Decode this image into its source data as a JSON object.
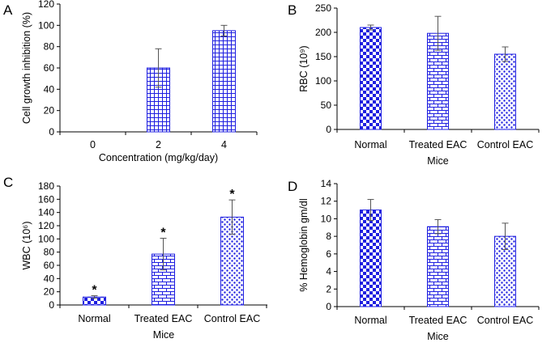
{
  "chart_data": [
    {
      "panel": "A",
      "type": "bar",
      "categories": [
        "0",
        "2",
        "4"
      ],
      "values": [
        0,
        60,
        95
      ],
      "errors": [
        0,
        18,
        5
      ],
      "patterns": [
        "grid",
        "grid",
        "grid"
      ],
      "ylabel": "Cell growth inhibition (%)",
      "xlabel": "Concentration (mg/kg/day)",
      "ylim": [
        0,
        120
      ],
      "yticks": [
        0,
        20,
        40,
        60,
        80,
        100,
        120
      ],
      "ytick_labels": [
        "0",
        "20",
        "40",
        "60",
        "80",
        "100",
        "120"
      ],
      "markers": [
        "",
        "",
        ""
      ]
    },
    {
      "panel": "B",
      "type": "bar",
      "categories": [
        "Normal",
        "Treated EAC",
        "Control EAC"
      ],
      "values": [
        210,
        198,
        155
      ],
      "errors": [
        5,
        35,
        15
      ],
      "patterns": [
        "checker",
        "brick",
        "dots"
      ],
      "ylabel": "RBC (10⁹)",
      "xlabel": "Mice",
      "ylim": [
        0,
        250
      ],
      "yticks": [
        0,
        50,
        100,
        150,
        200,
        250
      ],
      "ytick_labels": [
        "0",
        "50",
        "100",
        "150",
        "200",
        "250"
      ],
      "markers": [
        "",
        "",
        ""
      ]
    },
    {
      "panel": "C",
      "type": "bar",
      "categories": [
        "Normal",
        "Treated EAC",
        "Control EAC"
      ],
      "values": [
        12,
        77,
        133
      ],
      "errors": [
        2,
        24,
        26
      ],
      "patterns": [
        "checker",
        "brick",
        "dots"
      ],
      "ylabel": "WBC (10⁶)",
      "xlabel": "Mice",
      "ylim": [
        0,
        180
      ],
      "yticks": [
        0,
        20,
        40,
        60,
        80,
        100,
        120,
        140,
        160,
        180
      ],
      "ytick_labels": [
        "0",
        "20",
        "40",
        "60",
        "80",
        "100",
        "120",
        "140",
        "160",
        "180"
      ],
      "markers": [
        "*",
        "*",
        "*"
      ]
    },
    {
      "panel": "D",
      "type": "bar",
      "categories": [
        "Normal",
        "Treated EAC",
        "Control EAC"
      ],
      "values": [
        11,
        9.1,
        8
      ],
      "errors": [
        1.2,
        0.8,
        1.5
      ],
      "patterns": [
        "checker",
        "brick",
        "dots"
      ],
      "ylabel": "% Hemoglobin gm/dl",
      "xlabel": "Mice",
      "ylim": [
        0,
        14
      ],
      "yticks": [
        0,
        2,
        4,
        6,
        8,
        10,
        12,
        14
      ],
      "ytick_labels": [
        "0",
        "2",
        "4",
        "6",
        "8",
        "10",
        "12",
        "14"
      ],
      "markers": [
        "",
        "",
        ""
      ]
    }
  ],
  "colors": {
    "bar": "#1f1fe0",
    "fill": "#ffffff",
    "axis": "#000000",
    "error": "#555555"
  }
}
